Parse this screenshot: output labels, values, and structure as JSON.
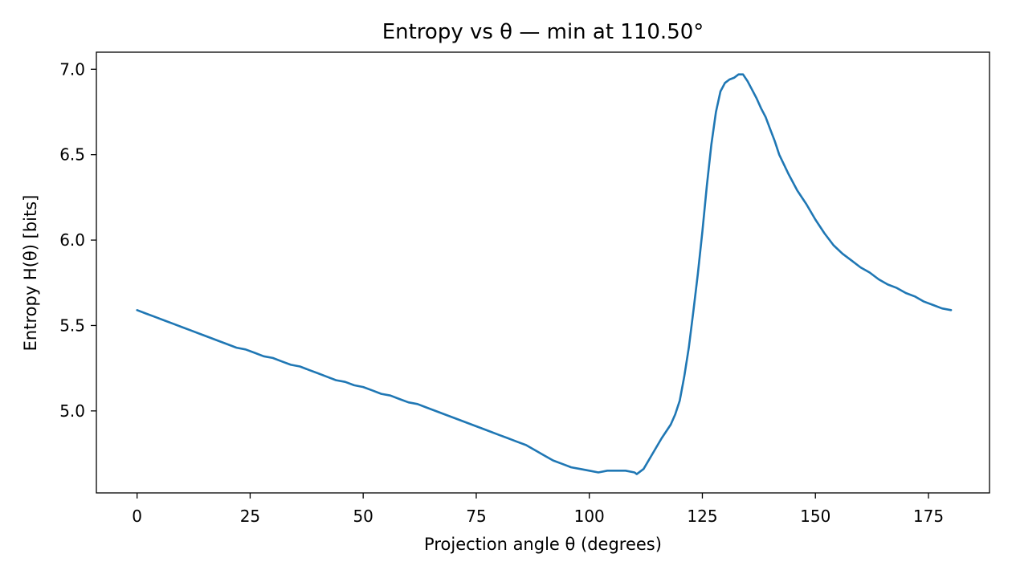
{
  "chart_data": {
    "type": "line",
    "title": "Entropy vs θ — min at 110.50°",
    "xlabel": "Projection angle θ (degrees)",
    "ylabel": "Entropy H(θ) [bits]",
    "xlim": [
      -9,
      188.5
    ],
    "ylim": [
      4.52,
      7.1
    ],
    "xticks": [
      0,
      25,
      50,
      75,
      100,
      125,
      150,
      175
    ],
    "xtick_labels": [
      "0",
      "25",
      "50",
      "75",
      "100",
      "125",
      "150",
      "175"
    ],
    "yticks": [
      5.0,
      5.5,
      6.0,
      6.5,
      7.0
    ],
    "ytick_labels": [
      "5.0",
      "5.5",
      "6.0",
      "6.5",
      "7.0"
    ],
    "grid": false,
    "legend": "none",
    "series": [
      {
        "color": "#1f77b4",
        "x": [
          0,
          2,
          4,
          6,
          8,
          10,
          12,
          14,
          16,
          18,
          20,
          22,
          24,
          26,
          28,
          30,
          32,
          34,
          36,
          38,
          40,
          42,
          44,
          46,
          48,
          50,
          52,
          54,
          56,
          58,
          60,
          62,
          64,
          66,
          68,
          70,
          72,
          74,
          76,
          78,
          80,
          82,
          84,
          86,
          88,
          90,
          92,
          94,
          96,
          98,
          100,
          102,
          104,
          106,
          108,
          110,
          110.5,
          112,
          114,
          116,
          118,
          119,
          120,
          121,
          122,
          123,
          124,
          125,
          126,
          127,
          128,
          129,
          130,
          131,
          132,
          133,
          134,
          135,
          136,
          137,
          138,
          139,
          140,
          141,
          142,
          144,
          146,
          148,
          150,
          152,
          154,
          156,
          158,
          160,
          162,
          164,
          166,
          168,
          170,
          172,
          174,
          176,
          178,
          180
        ],
        "y": [
          5.59,
          5.57,
          5.55,
          5.53,
          5.51,
          5.49,
          5.47,
          5.45,
          5.43,
          5.41,
          5.39,
          5.37,
          5.36,
          5.34,
          5.32,
          5.31,
          5.29,
          5.27,
          5.26,
          5.24,
          5.22,
          5.2,
          5.18,
          5.17,
          5.15,
          5.14,
          5.12,
          5.1,
          5.09,
          5.07,
          5.05,
          5.04,
          5.02,
          5.0,
          4.98,
          4.96,
          4.94,
          4.92,
          4.9,
          4.88,
          4.86,
          4.84,
          4.82,
          4.8,
          4.77,
          4.74,
          4.71,
          4.69,
          4.67,
          4.66,
          4.65,
          4.64,
          4.65,
          4.65,
          4.65,
          4.64,
          4.63,
          4.66,
          4.75,
          4.84,
          4.92,
          4.98,
          5.06,
          5.2,
          5.37,
          5.58,
          5.8,
          6.05,
          6.32,
          6.56,
          6.75,
          6.87,
          6.92,
          6.94,
          6.95,
          6.97,
          6.97,
          6.93,
          6.88,
          6.83,
          6.77,
          6.72,
          6.65,
          6.58,
          6.5,
          6.39,
          6.29,
          6.21,
          6.12,
          6.04,
          5.97,
          5.92,
          5.88,
          5.84,
          5.81,
          5.77,
          5.74,
          5.72,
          5.69,
          5.67,
          5.64,
          5.62,
          5.6,
          5.59
        ]
      }
    ]
  }
}
